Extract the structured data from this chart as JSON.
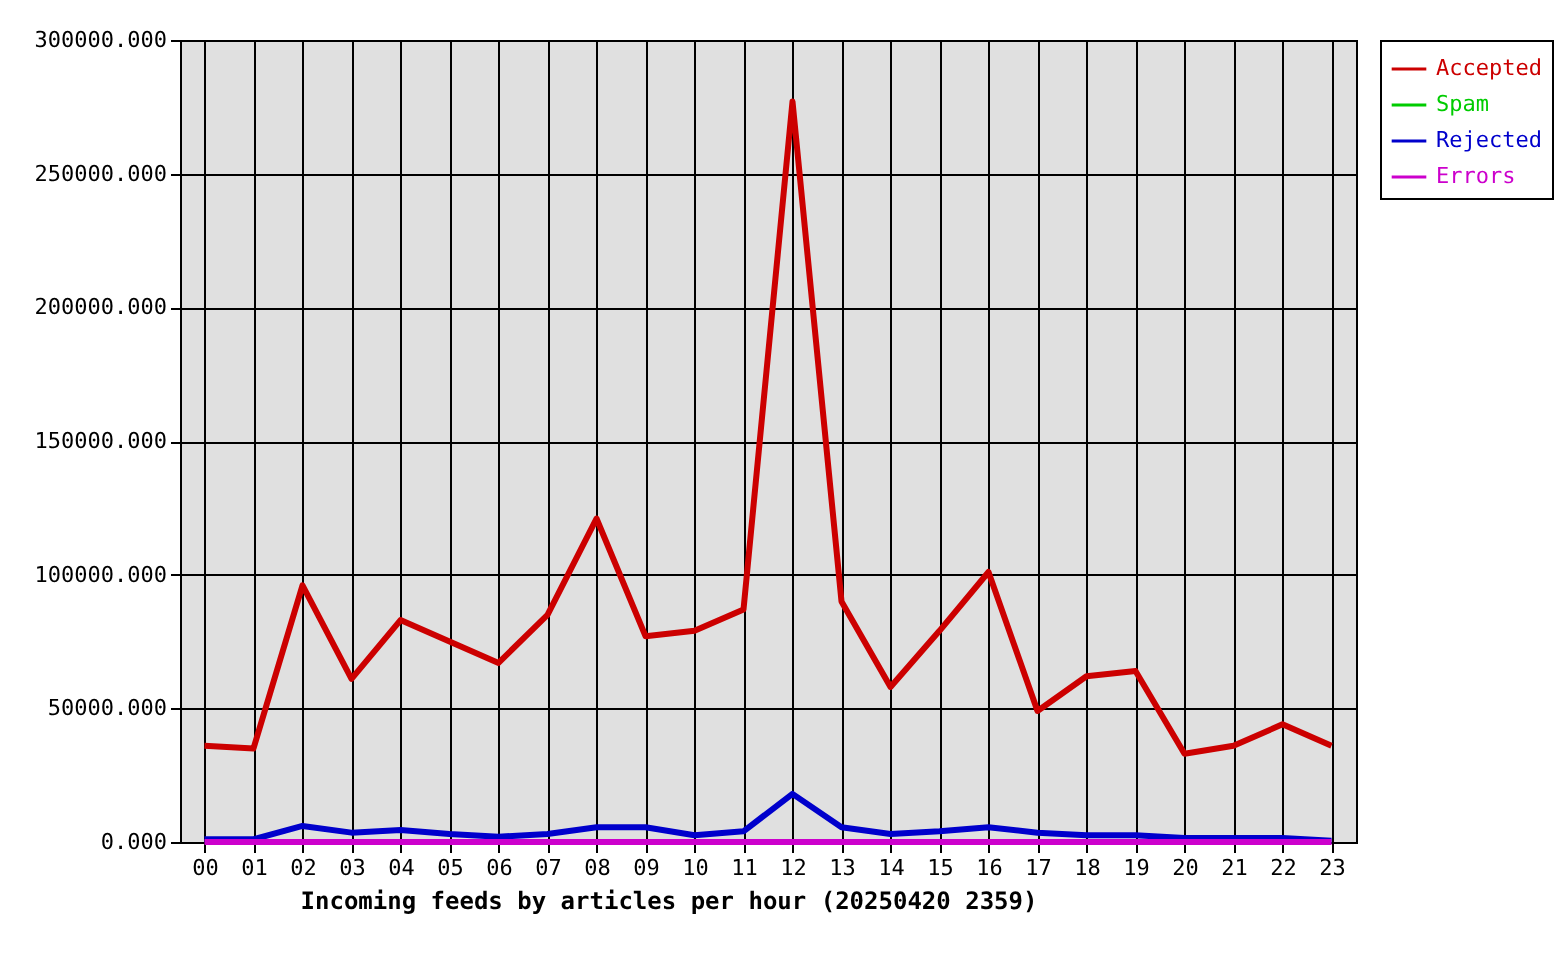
{
  "chart_data": {
    "type": "line",
    "xlabel": "Incoming feeds by articles per hour (20250420 2359)",
    "categories": [
      "00",
      "01",
      "02",
      "03",
      "04",
      "05",
      "06",
      "07",
      "08",
      "09",
      "10",
      "11",
      "12",
      "13",
      "14",
      "15",
      "16",
      "17",
      "18",
      "19",
      "20",
      "21",
      "22",
      "23"
    ],
    "series": [
      {
        "name": "Accepted",
        "color": "#cc0000",
        "values": [
          36000,
          35000,
          96000,
          61000,
          83000,
          75000,
          67000,
          85000,
          121000,
          77000,
          79000,
          87000,
          277000,
          90000,
          58000,
          79000,
          101000,
          49000,
          62000,
          64000,
          33000,
          36000,
          44000,
          36000
        ]
      },
      {
        "name": "Spam",
        "color": "#00cc00",
        "values": [
          null,
          null,
          null,
          null,
          null,
          null,
          null,
          null,
          null,
          null,
          null,
          null,
          null,
          null,
          null,
          null,
          null,
          null,
          null,
          null,
          null,
          null,
          null,
          null
        ]
      },
      {
        "name": "Rejected",
        "color": "#0000cc",
        "values": [
          1000,
          1000,
          6000,
          3500,
          4500,
          3000,
          2000,
          3000,
          5500,
          5500,
          2500,
          4000,
          18000,
          5500,
          3000,
          4000,
          5500,
          3500,
          2500,
          2500,
          1500,
          1500,
          1500,
          500
        ]
      },
      {
        "name": "Errors",
        "color": "#cc00cc",
        "values": [
          0,
          0,
          0,
          0,
          0,
          0,
          0,
          0,
          0,
          0,
          0,
          0,
          0,
          0,
          0,
          0,
          0,
          0,
          0,
          0,
          0,
          0,
          0,
          0
        ]
      }
    ],
    "ylim": [
      0,
      300000
    ],
    "yticks": [
      {
        "value": 0,
        "label": "0.000"
      },
      {
        "value": 50000,
        "label": "50000.000"
      },
      {
        "value": 100000,
        "label": "100000.000"
      },
      {
        "value": 150000,
        "label": "150000.000"
      },
      {
        "value": 200000,
        "label": "200000.000"
      },
      {
        "value": 250000,
        "label": "250000.000"
      },
      {
        "value": 300000,
        "label": "300000.000"
      }
    ],
    "grid": true,
    "legend": "top right",
    "marker": "none",
    "line_style": "solid"
  }
}
